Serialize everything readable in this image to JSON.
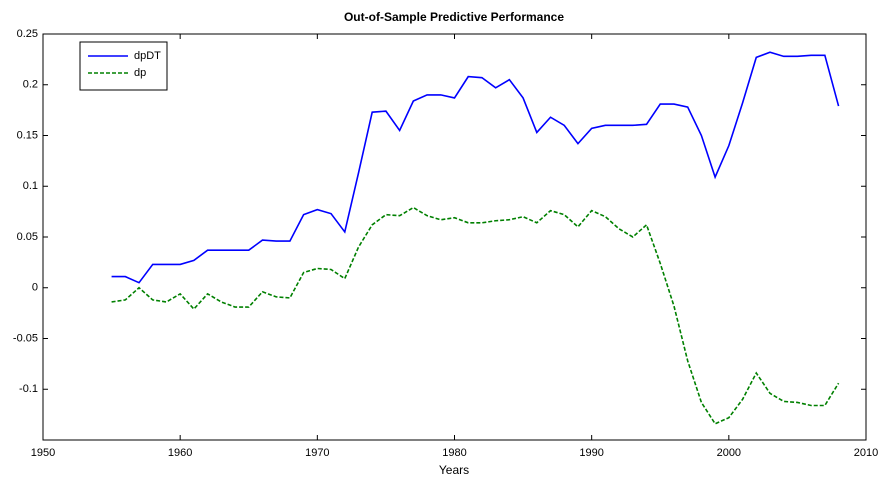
{
  "chart_data": {
    "type": "line",
    "title": "Out-of-Sample Predictive Performance",
    "x_label": "Years",
    "x": [
      1955,
      1956,
      1957,
      1958,
      1959,
      1960,
      1961,
      1962,
      1963,
      1964,
      1965,
      1966,
      1967,
      1968,
      1969,
      1970,
      1971,
      1972,
      1973,
      1974,
      1975,
      1976,
      1977,
      1978,
      1979,
      1980,
      1981,
      1982,
      1983,
      1984,
      1985,
      1986,
      1987,
      1988,
      1989,
      1990,
      1991,
      1992,
      1993,
      1994,
      1995,
      1996,
      1997,
      1998,
      1999,
      2000,
      2001,
      2002,
      2003,
      2004,
      2005,
      2006,
      2007,
      2008
    ],
    "series": [
      {
        "name": "dpDT",
        "color": "#0000ff",
        "dash": false,
        "values": [
          0.011,
          0.011,
          0.005,
          0.023,
          0.023,
          0.023,
          0.027,
          0.037,
          0.037,
          0.037,
          0.037,
          0.047,
          0.046,
          0.046,
          0.072,
          0.077,
          0.073,
          0.055,
          0.113,
          0.173,
          0.174,
          0.155,
          0.184,
          0.19,
          0.19,
          0.187,
          0.208,
          0.207,
          0.197,
          0.205,
          0.187,
          0.153,
          0.168,
          0.16,
          0.142,
          0.157,
          0.16,
          0.16,
          0.16,
          0.161,
          0.181,
          0.181,
          0.178,
          0.15,
          0.109,
          0.14,
          0.182,
          0.227,
          0.232,
          0.228,
          0.228,
          0.229,
          0.229,
          0.179
        ]
      },
      {
        "name": "dp",
        "color": "#008000",
        "dash": true,
        "values": [
          -0.014,
          -0.012,
          0.0,
          -0.012,
          -0.014,
          -0.006,
          -0.021,
          -0.006,
          -0.014,
          -0.019,
          -0.019,
          -0.004,
          -0.009,
          -0.01,
          0.015,
          0.019,
          0.018,
          0.009,
          0.04,
          0.062,
          0.072,
          0.071,
          0.079,
          0.071,
          0.067,
          0.069,
          0.064,
          0.064,
          0.066,
          0.067,
          0.07,
          0.064,
          0.076,
          0.072,
          0.06,
          0.076,
          0.07,
          0.058,
          0.05,
          0.062,
          0.024,
          -0.018,
          -0.072,
          -0.113,
          -0.134,
          -0.128,
          -0.11,
          -0.084,
          -0.104,
          -0.112,
          -0.113,
          -0.116,
          -0.116,
          -0.094
        ]
      }
    ],
    "xlim": [
      1950,
      2010
    ],
    "xticks": [
      1950,
      1960,
      1970,
      1980,
      1990,
      2000,
      2010
    ],
    "ylim": [
      -0.15,
      0.25
    ],
    "yticks": [
      -0.1,
      -0.05,
      0,
      0.05,
      0.1,
      0.15,
      0.2,
      0.25
    ],
    "grid": false,
    "legend": "upper left"
  }
}
